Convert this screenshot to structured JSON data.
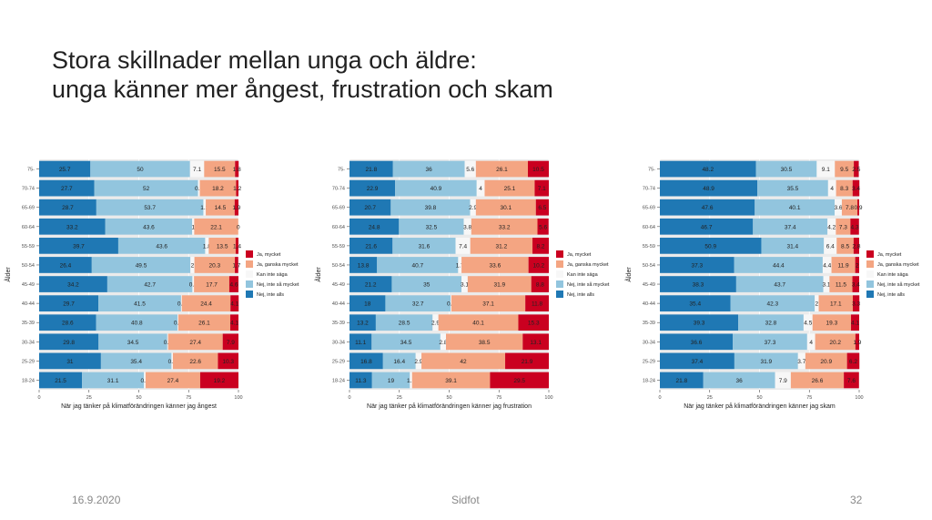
{
  "slide": {
    "title_line1": "Stora skillnader mellan unga och äldre:",
    "title_line2": "unga känner mer ångest, frustration och skam",
    "footer_date": "16.9.2020",
    "footer_center": "Sidfot",
    "footer_page": "32"
  },
  "colors": {
    "Nej, inte alls": "#1f78b4",
    "Nej, inte så mycket": "#92c5de",
    "Kan inte säga": "#f7f7f7",
    "Ja, ganska mycket": "#f4a582",
    "Ja, mycket": "#ca0020",
    "panel_background": "#ebebeb"
  },
  "chart_data": [
    {
      "type": "bar",
      "orientation": "horizontal",
      "stacked": true,
      "xlabel": "När jag tänker på klimatförändringen känner jag ångest",
      "ylabel": "Ålder",
      "xlim": [
        0,
        100
      ],
      "xticks": [
        "0",
        "25",
        "50",
        "75",
        "100"
      ],
      "legend_position": "right",
      "categories": [
        "75-",
        "70-74",
        "65-69",
        "60-64",
        "55-59",
        "50-54",
        "45-49",
        "40-44",
        "35-39",
        "30-34",
        "25-29",
        "18-24"
      ],
      "series": [
        {
          "name": "Nej, inte alls",
          "values": [
            25.7,
            27.7,
            28.7,
            33.2,
            39.7,
            26.4,
            34.2,
            29.7,
            28.6,
            29.8,
            31,
            21.5
          ]
        },
        {
          "name": "Nej, inte så mycket",
          "values": [
            50,
            52,
            53.7,
            43.6,
            43.6,
            49.5,
            42.7,
            41.5,
            40.8,
            34.5,
            35.4,
            31.1
          ]
        },
        {
          "name": "Kan inte säga",
          "values": [
            7.1,
            0.9,
            1.2,
            1,
            1.8,
            2,
            0.8,
            0.4,
            0.4,
            0.4,
            0.7,
            0.8
          ]
        },
        {
          "name": "Ja, ganska mycket",
          "values": [
            15.5,
            18.2,
            14.5,
            22.1,
            13.5,
            20.3,
            17.7,
            24.4,
            26.1,
            27.4,
            22.6,
            27.4
          ]
        },
        {
          "name": "Ja, mycket",
          "values": [
            1.8,
            1.2,
            1.9,
            0,
            1.4,
            1.7,
            4.6,
            4.1,
            4.1,
            7.9,
            10.3,
            19.2
          ]
        }
      ]
    },
    {
      "type": "bar",
      "orientation": "horizontal",
      "stacked": true,
      "xlabel": "När jag tänker på klimatförändringen känner jag frustration",
      "ylabel": "Ålder",
      "xlim": [
        0,
        100
      ],
      "xticks": [
        "0",
        "25",
        "50",
        "75",
        "100"
      ],
      "legend_position": "right",
      "categories": [
        "75-",
        "70-74",
        "65-69",
        "60-64",
        "55-59",
        "50-54",
        "45-49",
        "40-44",
        "35-39",
        "30-34",
        "25-29",
        "18-24"
      ],
      "series": [
        {
          "name": "Nej, inte alls",
          "values": [
            21.8,
            22.9,
            20.7,
            24.8,
            21.6,
            13.8,
            21.2,
            18,
            13.2,
            11.1,
            16.8,
            11.3
          ]
        },
        {
          "name": "Nej, inte så mycket",
          "values": [
            36,
            40.9,
            39.8,
            32.5,
            31.6,
            40.7,
            35,
            32.7,
            28.5,
            34.5,
            16.4,
            19
          ]
        },
        {
          "name": "Kan inte säga",
          "values": [
            5.6,
            4,
            2.9,
            3.8,
            7.4,
            1.7,
            3.1,
            0.4,
            2.9,
            2.8,
            2.9,
            1.1
          ]
        },
        {
          "name": "Ja, ganska mycket",
          "values": [
            26.1,
            25.1,
            30.1,
            33.2,
            31.2,
            33.6,
            31.9,
            37.1,
            40.1,
            38.5,
            42,
            39.1
          ]
        },
        {
          "name": "Ja, mycket",
          "values": [
            10.5,
            7.1,
            6.5,
            5.6,
            8.2,
            10.2,
            8.8,
            11.8,
            15.3,
            13.1,
            21.9,
            29.5
          ]
        }
      ]
    },
    {
      "type": "bar",
      "orientation": "horizontal",
      "stacked": true,
      "xlabel": "När jag tänker på klimatförändringen känner jag skam",
      "ylabel": "Ålder",
      "xlim": [
        0,
        100
      ],
      "xticks": [
        "0",
        "25",
        "50",
        "75",
        "100"
      ],
      "legend_position": "right",
      "categories": [
        "75-",
        "70-74",
        "65-69",
        "60-64",
        "55-59",
        "50-54",
        "45-49",
        "40-44",
        "35-39",
        "30-34",
        "25-29",
        "18-24"
      ],
      "series": [
        {
          "name": "Nej, inte alls",
          "values": [
            48.2,
            48.9,
            47.6,
            46.7,
            50.9,
            37.3,
            38.3,
            35.4,
            39.3,
            36.6,
            37.4,
            21.8
          ]
        },
        {
          "name": "Nej, inte så mycket",
          "values": [
            30.5,
            35.5,
            40.1,
            37.4,
            31.4,
            44.4,
            43.7,
            42.3,
            32.8,
            37.3,
            31.9,
            36
          ]
        },
        {
          "name": "Kan inte säga",
          "values": [
            9.1,
            4,
            3.6,
            4.2,
            6.4,
            4.4,
            3.1,
            2,
            4.5,
            4,
            3.7,
            7.9
          ]
        },
        {
          "name": "Ja, ganska mycket",
          "values": [
            9.5,
            8.3,
            7.8,
            7.3,
            8.5,
            11.9,
            11.5,
            17.1,
            19.3,
            20.2,
            20.9,
            26.6
          ]
        },
        {
          "name": "Ja, mycket",
          "values": [
            2.5,
            3.4,
            0.9,
            4.3,
            2.8,
            2,
            3.4,
            3.3,
            4.1,
            1.9,
            6.2,
            7.6
          ]
        }
      ]
    }
  ],
  "legend_order": [
    "Ja, mycket",
    "Ja, ganska mycket",
    "Kan inte säga",
    "Nej, inte så mycket",
    "Nej, inte alls"
  ]
}
